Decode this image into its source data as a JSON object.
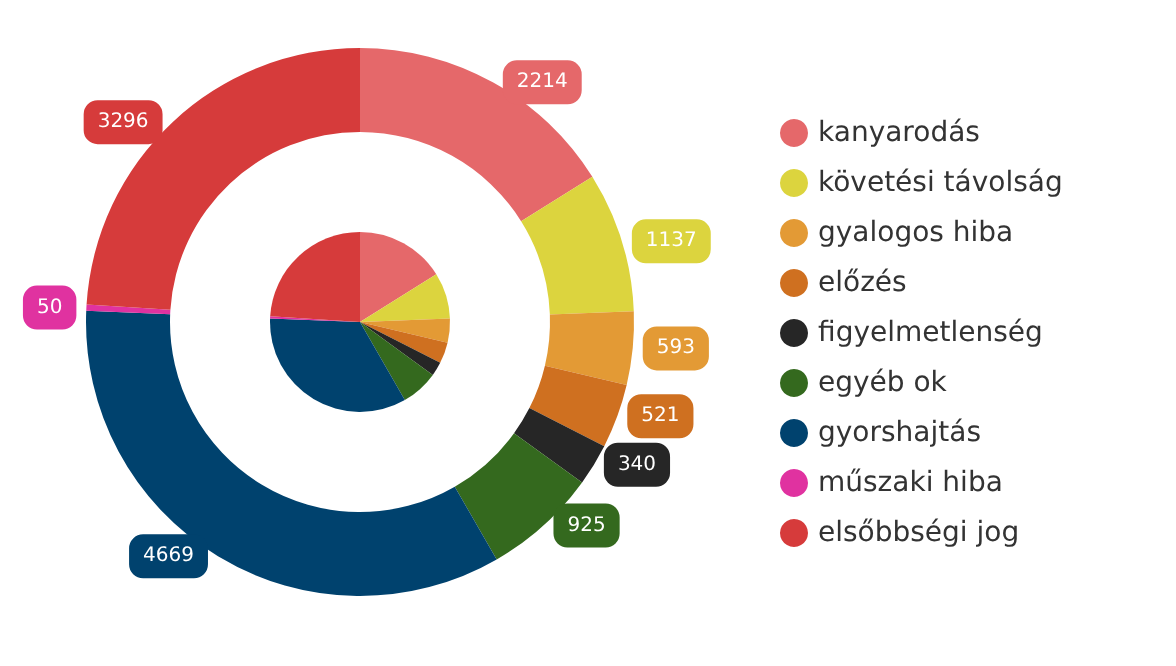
{
  "chart_data": [
    {
      "type": "donut",
      "categories": [
        "kanyarodás",
        "követési távolság",
        "gyalogos hiba",
        "előzés",
        "figyelmetlenség",
        "egyéb ok",
        "gyorshajtás",
        "műszaki hiba",
        "elsőbbségi jog"
      ],
      "colors": [
        "#e5686a",
        "#dcd43e",
        "#e39a35",
        "#cf7020",
        "#262626",
        "#34691e",
        "#00426e",
        "#e032a0",
        "#d63b3b"
      ],
      "legend": "right",
      "data_labels": true,
      "values": [
        2214,
        1137,
        593,
        521,
        340,
        925,
        4669,
        50,
        3296
      ]
    },
    {
      "type": "pie",
      "categories": [
        null,
        null,
        null,
        null,
        null,
        null,
        null,
        null,
        null
      ],
      "colors": [
        "#e5686a",
        "#dcd43e",
        "#e39a35",
        "#cf7020",
        "#262626",
        "#34691e",
        "#00426e",
        "#e032a0",
        "#d63b3b"
      ],
      "values": [
        16.1,
        8.3,
        4.3,
        3.8,
        2.5,
        6.7,
        33.9,
        0.4,
        24.0
      ]
    }
  ]
}
